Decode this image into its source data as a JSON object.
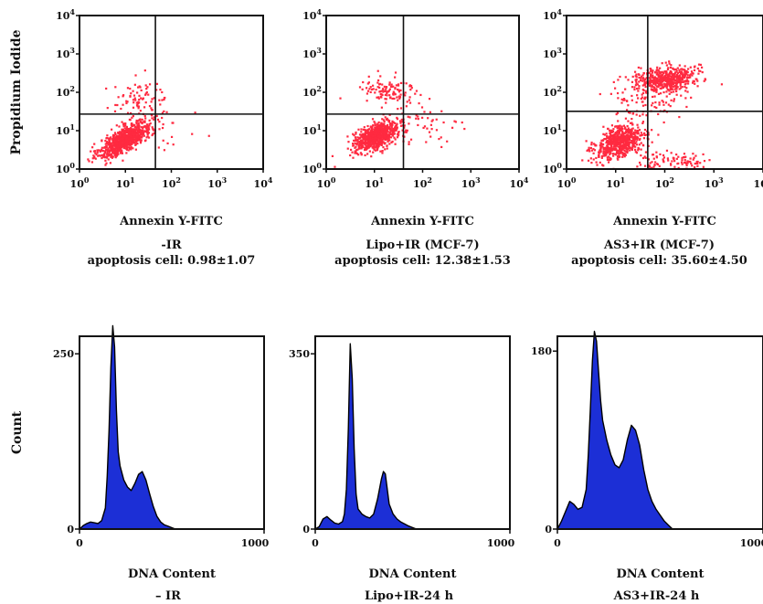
{
  "chart_data": [
    {
      "type": "scatter",
      "panel": "scatter-1",
      "xlabel": "Annexin Y-FITC",
      "ylabel": "Propidium Iodide",
      "caption": [
        "-IR",
        "apoptosis cell: 0.98±1.07"
      ],
      "x_scale": "log",
      "y_scale": "log",
      "xlim": [
        1,
        10000
      ],
      "ylim": [
        1,
        10000
      ],
      "x_ticks": [
        "10^0",
        "10^1",
        "10^2",
        "10^3",
        "10^4"
      ],
      "y_ticks": [
        "10^0",
        "10^1",
        "10^2",
        "10^3",
        "10^4"
      ],
      "gate": {
        "x": 45,
        "y": 27
      },
      "populations": [
        {
          "cx": 10,
          "cy": 6,
          "sx": 0.28,
          "sy": 0.24,
          "rho": 0.75,
          "n": 820
        },
        {
          "cx": 20,
          "cy": 60,
          "sx": 0.35,
          "sy": 0.28,
          "rho": 0.0,
          "n": 90
        },
        {
          "cx": 60,
          "cy": 8,
          "sx": 0.4,
          "sy": 0.3,
          "rho": 0.0,
          "n": 30
        }
      ]
    },
    {
      "type": "scatter",
      "panel": "scatter-2",
      "xlabel": "Annexin Y-FITC",
      "caption": [
        "Lipo+IR (MCF-7)",
        "apoptosis cell: 12.38±1.53"
      ],
      "x_scale": "log",
      "y_scale": "log",
      "xlim": [
        1,
        10000
      ],
      "ylim": [
        1,
        10000
      ],
      "x_ticks": [
        "10^0",
        "10^1",
        "10^2",
        "10^3",
        "10^4"
      ],
      "y_ticks": [
        "10^0",
        "10^1",
        "10^2",
        "10^3",
        "10^4"
      ],
      "gate": {
        "x": 40,
        "y": 27
      },
      "populations": [
        {
          "cx": 11,
          "cy": 7,
          "sx": 0.22,
          "sy": 0.18,
          "rho": 0.5,
          "n": 760
        },
        {
          "cx": 18,
          "cy": 110,
          "sx": 0.3,
          "sy": 0.2,
          "rho": 0.0,
          "n": 110
        },
        {
          "cx": 90,
          "cy": 12,
          "sx": 0.45,
          "sy": 0.35,
          "rho": 0.0,
          "n": 60
        }
      ]
    },
    {
      "type": "scatter",
      "panel": "scatter-3",
      "xlabel": "Annexin Y-FITC",
      "caption": [
        "AS3+IR (MCF-7)",
        "apoptosis cell: 35.60±4.50"
      ],
      "x_scale": "log",
      "y_scale": "log",
      "xlim": [
        1,
        10000
      ],
      "ylim": [
        1,
        10000
      ],
      "x_ticks": [
        "10^0",
        "10^1",
        "10^2",
        "10^3",
        "10^4"
      ],
      "y_ticks": [
        "10^0",
        "10^1",
        "10^2",
        "10^3",
        "10^4"
      ],
      "gate": {
        "x": 45,
        "y": 32
      },
      "populations": [
        {
          "cx": 12,
          "cy": 5,
          "sx": 0.25,
          "sy": 0.22,
          "rho": 0.4,
          "n": 620
        },
        {
          "cx": 110,
          "cy": 230,
          "sx": 0.3,
          "sy": 0.16,
          "rho": 0.1,
          "n": 480
        },
        {
          "cx": 45,
          "cy": 70,
          "sx": 0.35,
          "sy": 0.3,
          "rho": 0.0,
          "n": 120
        },
        {
          "cx": 130,
          "cy": 1.6,
          "sx": 0.4,
          "sy": 0.12,
          "rho": 0.0,
          "n": 100
        }
      ]
    },
    {
      "type": "area",
      "panel": "histogram-1",
      "xlabel": "DNA Content",
      "ylabel": "Count",
      "caption": [
        "– IR"
      ],
      "xlim": [
        0,
        1000
      ],
      "ylim": [
        0,
        275
      ],
      "x_ticks": [
        "0",
        "1000"
      ],
      "y_ticks": [
        "0",
        "250"
      ],
      "x": [
        0,
        20,
        40,
        60,
        80,
        100,
        120,
        140,
        150,
        160,
        170,
        180,
        190,
        200,
        210,
        220,
        240,
        260,
        280,
        300,
        320,
        340,
        360,
        380,
        400,
        420,
        440,
        460,
        480,
        500,
        520
      ],
      "values": [
        0,
        5,
        8,
        10,
        9,
        8,
        12,
        30,
        75,
        140,
        230,
        290,
        260,
        170,
        110,
        90,
        70,
        60,
        55,
        65,
        78,
        82,
        70,
        50,
        32,
        18,
        10,
        6,
        4,
        2,
        0
      ]
    },
    {
      "type": "area",
      "panel": "histogram-2",
      "xlabel": "DNA Content",
      "caption": [
        "Lipo+IR-24 h"
      ],
      "xlim": [
        0,
        1000
      ],
      "ylim": [
        0,
        385
      ],
      "x_ticks": [
        "0",
        "1000"
      ],
      "y_ticks": [
        "0",
        "350"
      ],
      "x": [
        0,
        20,
        40,
        60,
        80,
        100,
        120,
        140,
        150,
        160,
        170,
        180,
        190,
        200,
        210,
        220,
        240,
        260,
        280,
        300,
        320,
        340,
        350,
        360,
        370,
        380,
        400,
        420,
        440,
        460,
        480,
        500,
        520
      ],
      "values": [
        0,
        5,
        20,
        25,
        18,
        12,
        10,
        15,
        30,
        80,
        200,
        370,
        300,
        160,
        70,
        40,
        30,
        25,
        22,
        30,
        60,
        100,
        115,
        110,
        80,
        50,
        30,
        20,
        14,
        10,
        6,
        3,
        0
      ]
    },
    {
      "type": "area",
      "panel": "histogram-3",
      "xlabel": "DNA Content",
      "caption": [
        "AS3+IR-24 h"
      ],
      "xlim": [
        0,
        1000
      ],
      "ylim": [
        0,
        195
      ],
      "x_ticks": [
        "0",
        "1000"
      ],
      "y_ticks": [
        "0",
        "180"
      ],
      "x": [
        0,
        20,
        40,
        60,
        80,
        100,
        120,
        140,
        150,
        160,
        170,
        180,
        190,
        200,
        210,
        220,
        240,
        260,
        280,
        300,
        320,
        340,
        360,
        380,
        400,
        420,
        440,
        460,
        480,
        500,
        520,
        540,
        560
      ],
      "values": [
        0,
        8,
        18,
        28,
        25,
        20,
        22,
        40,
        75,
        120,
        170,
        200,
        190,
        160,
        130,
        110,
        90,
        75,
        65,
        62,
        70,
        90,
        105,
        100,
        85,
        60,
        40,
        28,
        20,
        14,
        8,
        4,
        0
      ]
    }
  ]
}
